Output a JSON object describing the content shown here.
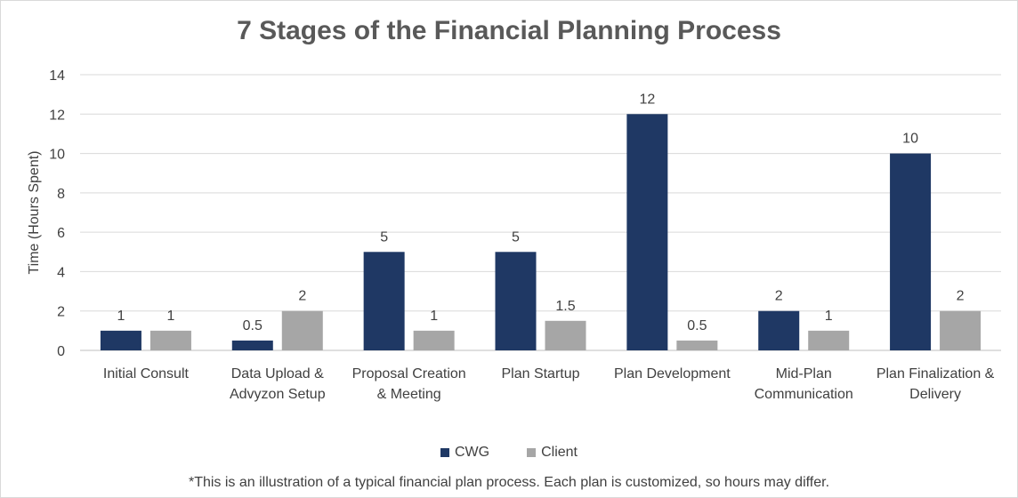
{
  "chart_data": {
    "type": "bar",
    "title": "7 Stages of the Financial Planning Process",
    "ylabel": "Time (Hours Spent)",
    "xlabel": "",
    "ylim": [
      0,
      14
    ],
    "yticks": [
      0,
      2,
      4,
      6,
      8,
      10,
      12,
      14
    ],
    "grid": true,
    "legend_position": "bottom",
    "categories": [
      [
        "Initial Consult"
      ],
      [
        "Data Upload &",
        "Advyzon Setup"
      ],
      [
        "Proposal Creation",
        "& Meeting"
      ],
      [
        "Plan Startup"
      ],
      [
        "Plan Development"
      ],
      [
        "Mid-Plan",
        "Communication"
      ],
      [
        "Plan Finalization &",
        "Delivery"
      ]
    ],
    "series": [
      {
        "name": "CWG",
        "color": "#1f3864",
        "values": [
          1,
          0.5,
          5,
          5,
          12,
          2,
          10
        ]
      },
      {
        "name": "Client",
        "color": "#a6a6a6",
        "values": [
          1,
          2,
          1,
          1.5,
          0.5,
          1,
          2
        ]
      }
    ],
    "footnote": "*This is an illustration of a typical financial plan process. Each plan is customized, so hours may differ."
  }
}
